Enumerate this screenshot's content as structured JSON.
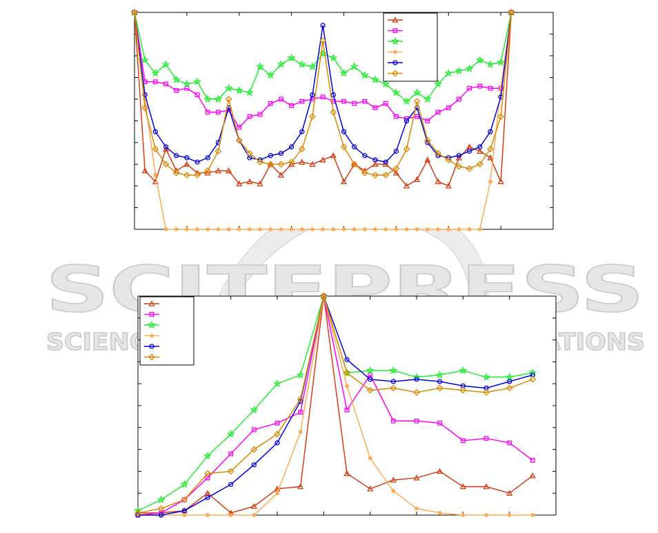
{
  "watermark": {
    "title": "SCITEPRESS",
    "subtitle": "SCIENCE AND TECHNOLOGY PUBLICATIONS"
  },
  "chart_data": [
    {
      "type": "line",
      "grid": false,
      "legend": "upper right",
      "x": [
        0,
        1,
        2,
        3,
        4,
        5,
        6,
        7,
        8,
        9,
        10,
        11,
        12,
        13,
        14,
        15,
        16,
        17,
        18,
        19,
        20,
        21,
        22,
        23,
        24,
        25,
        26,
        27,
        28,
        29,
        30,
        31,
        32,
        33,
        34,
        35,
        36
      ],
      "xlim": [
        0,
        40
      ],
      "xticks": [
        0,
        5,
        10,
        15,
        20,
        25,
        30,
        35,
        40
      ],
      "ylim": [
        0,
        10
      ],
      "yticks": [
        0,
        1,
        2,
        3,
        4,
        5,
        6,
        7,
        8,
        9,
        10
      ],
      "series": [
        {
          "color": "#d63c10",
          "marker": "triangle",
          "values": [
            10,
            2.7,
            2.2,
            3.7,
            2.7,
            3.0,
            2.6,
            2.6,
            2.7,
            2.7,
            2.1,
            2.2,
            2.1,
            3.0,
            2.5,
            3.0,
            3.1,
            3.0,
            3.2,
            3.4,
            2.2,
            3.0,
            2.7,
            3.0,
            3.0,
            2.6,
            2.0,
            2.3,
            3.2,
            2.2,
            2.0,
            3.3,
            3.8,
            3.6,
            3.3,
            2.2,
            10
          ]
        },
        {
          "color": "#ff00ff",
          "marker": "square",
          "values": [
            10,
            6.8,
            6.8,
            6.7,
            6.4,
            6.5,
            6.2,
            5.4,
            5.4,
            5.5,
            4.7,
            5.2,
            5.3,
            5.8,
            6.0,
            5.7,
            5.9,
            6.0,
            6.1,
            5.9,
            5.9,
            5.8,
            5.9,
            5.6,
            5.8,
            5.2,
            5.1,
            5.2,
            5.0,
            5.4,
            5.6,
            6.0,
            6.5,
            6.6,
            6.5,
            6.5,
            10
          ]
        },
        {
          "color": "#22ee33",
          "marker": "star",
          "values": [
            10,
            7.8,
            7.2,
            7.6,
            6.9,
            6.7,
            6.8,
            6.0,
            6.0,
            6.5,
            6.4,
            6.3,
            7.5,
            7.1,
            7.6,
            7.9,
            7.6,
            7.5,
            8.1,
            7.9,
            7.2,
            7.5,
            7.1,
            6.9,
            6.7,
            6.3,
            5.9,
            6.3,
            6.0,
            6.7,
            7.2,
            7.3,
            7.4,
            7.8,
            7.6,
            7.7,
            10
          ]
        },
        {
          "color": "#ffaa55",
          "marker": "dot",
          "values": [
            10,
            6.0,
            2.5,
            0,
            0,
            0,
            0,
            0,
            0,
            0,
            0,
            0,
            0,
            0,
            0,
            0,
            0,
            0,
            0,
            0,
            0,
            0,
            0,
            0,
            0,
            0,
            0,
            0,
            0,
            0,
            0,
            0,
            0,
            0,
            2.2,
            6.5,
            10
          ]
        },
        {
          "color": "#0000dd",
          "marker": "circle",
          "values": [
            10,
            6.2,
            4.5,
            3.8,
            3.4,
            3.3,
            3.1,
            3.3,
            4.0,
            5.6,
            4.1,
            3.3,
            3.2,
            3.4,
            3.5,
            3.8,
            4.5,
            6.2,
            9.4,
            6.2,
            4.5,
            3.8,
            3.4,
            3.2,
            3.1,
            3.6,
            5.0,
            5.6,
            4.0,
            3.4,
            3.3,
            3.4,
            3.6,
            3.8,
            4.5,
            6.1,
            10
          ]
        },
        {
          "color": "#dd8800",
          "marker": "diamond",
          "values": [
            10,
            5.6,
            3.7,
            3.0,
            2.6,
            2.5,
            2.5,
            2.7,
            3.6,
            6.0,
            4.1,
            3.5,
            3.1,
            3.0,
            3.0,
            3.1,
            3.7,
            5.2,
            8.7,
            5.4,
            3.8,
            3.0,
            2.6,
            2.5,
            2.5,
            2.8,
            3.7,
            5.9,
            4.1,
            3.5,
            3.2,
            2.9,
            2.8,
            3.0,
            3.7,
            5.2,
            10
          ]
        }
      ]
    },
    {
      "type": "line",
      "grid": false,
      "legend": "upper left",
      "x": [
        0,
        1,
        2,
        3,
        4,
        5,
        6,
        7,
        8,
        9,
        10,
        11,
        12,
        13,
        14,
        15,
        16,
        17
      ],
      "xlim": [
        0,
        18
      ],
      "xticks": [
        0,
        2,
        4,
        6,
        8,
        10,
        12,
        14,
        16,
        18
      ],
      "ylim": [
        0,
        10
      ],
      "yticks": [
        0,
        1,
        2,
        3,
        4,
        5,
        6,
        7,
        8,
        9,
        10
      ],
      "series": [
        {
          "color": "#d63c10",
          "marker": "triangle",
          "values": [
            0.1,
            0.1,
            0.2,
            1.0,
            0.1,
            0.4,
            1.2,
            1.3,
            10,
            1.9,
            1.2,
            1.6,
            1.7,
            2.0,
            1.3,
            1.3,
            1.0,
            1.8
          ]
        },
        {
          "color": "#ff00ff",
          "marker": "square",
          "values": [
            0.0,
            0.1,
            0.7,
            1.7,
            2.8,
            3.9,
            4.2,
            4.7,
            10,
            4.8,
            6.4,
            4.3,
            4.3,
            4.2,
            3.4,
            3.5,
            3.3,
            2.5
          ]
        },
        {
          "color": "#22ee33",
          "marker": "star",
          "values": [
            0.2,
            0.7,
            1.4,
            2.7,
            3.7,
            4.8,
            6.0,
            6.4,
            10,
            6.5,
            6.6,
            6.6,
            6.3,
            6.4,
            6.6,
            6.3,
            6.3,
            6.5
          ]
        },
        {
          "color": "#ffaa55",
          "marker": "dot",
          "values": [
            0,
            0,
            0,
            0,
            0,
            0,
            1.0,
            3.8,
            10,
            5.9,
            2.6,
            1.1,
            0.3,
            0.1,
            0,
            0,
            0,
            0
          ]
        },
        {
          "color": "#0000dd",
          "marker": "circle",
          "values": [
            0,
            0,
            0.2,
            0.8,
            1.4,
            2.3,
            3.3,
            5.2,
            10,
            7.1,
            6.2,
            6.1,
            6.2,
            6.1,
            5.9,
            5.8,
            6.1,
            6.4
          ]
        },
        {
          "color": "#dd8800",
          "marker": "diamond",
          "values": [
            0.1,
            0.3,
            0.7,
            1.9,
            2.0,
            3.0,
            3.7,
            5.3,
            10,
            6.5,
            5.7,
            5.8,
            5.6,
            5.8,
            5.7,
            5.6,
            5.8,
            6.2
          ]
        }
      ]
    }
  ]
}
